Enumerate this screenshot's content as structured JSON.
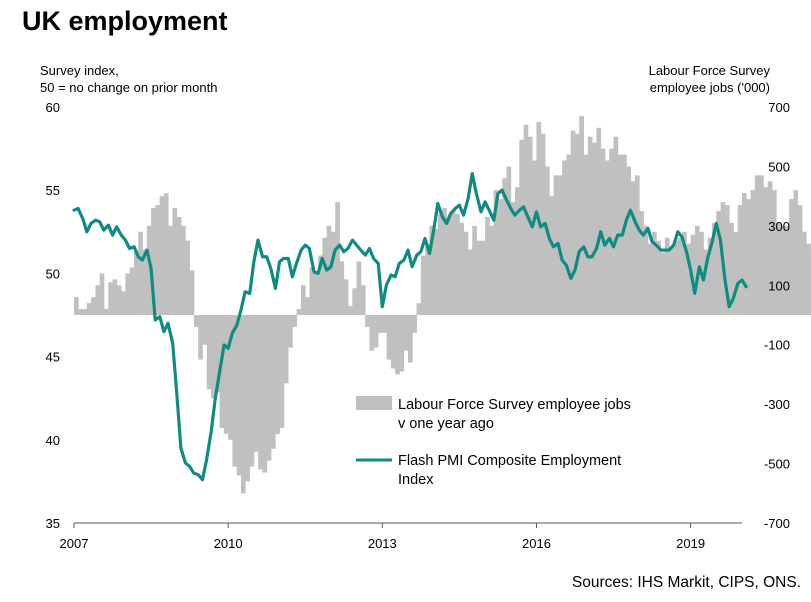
{
  "title": "UK employment",
  "source": "Sources: IHS Markit, CIPS, ONS.",
  "chart_data": {
    "type": "bar+line",
    "title": "UK employment",
    "left_axis": {
      "label_line1": "Survey index,",
      "label_line2": "50 = no change on prior month",
      "range": [
        35,
        60
      ],
      "ticks": [
        35,
        40,
        45,
        50,
        55,
        60
      ]
    },
    "right_axis": {
      "label_line1": "Labour Force Survey",
      "label_line2": "employee jobs  ('000)",
      "range": [
        -700,
        700
      ],
      "ticks": [
        -700,
        -500,
        -300,
        -100,
        100,
        300,
        500,
        700
      ]
    },
    "x_axis": {
      "range": [
        2007.0,
        2020.0
      ],
      "ticks": [
        2007,
        2010,
        2013,
        2016,
        2019
      ],
      "tick_labels": [
        "2007",
        "2010",
        "2013",
        "2016",
        "2019"
      ]
    },
    "legend": {
      "placement": "lower-right",
      "bar_label_line1": "Labour Force Survey employee jobs",
      "bar_label_line2": "v one year ago",
      "line_label_line1": "Flash PMI Composite Employment",
      "line_label_line2": "Index"
    },
    "colors": {
      "bars": "#c0c0c0",
      "line": "#0f8c82",
      "axis": "#555555"
    },
    "series": [
      {
        "name": "Labour Force Survey employee jobs v one year ago",
        "axis": "right",
        "kind": "bar",
        "x_start": 2007.0,
        "step_months": 1,
        "values": [
          60,
          20,
          20,
          40,
          60,
          100,
          140,
          20,
          110,
          120,
          100,
          80,
          140,
          160,
          220,
          280,
          220,
          300,
          360,
          370,
          400,
          410,
          300,
          360,
          330,
          300,
          250,
          150,
          -40,
          -150,
          -100,
          -250,
          -280,
          -260,
          -380,
          -400,
          -420,
          -510,
          -540,
          -600,
          -560,
          -510,
          -460,
          -520,
          -530,
          -490,
          -450,
          -400,
          -380,
          -230,
          -110,
          -40,
          20,
          100,
          60,
          160,
          140,
          200,
          260,
          300,
          280,
          380,
          180,
          120,
          30,
          90,
          180,
          100,
          -40,
          -120,
          -110,
          -60,
          -60,
          -150,
          -180,
          -200,
          -190,
          -120,
          -160,
          -60,
          40,
          200,
          240,
          300,
          290,
          340,
          360,
          330,
          350,
          340,
          310,
          280,
          220,
          300,
          250,
          250,
          330,
          300,
          420,
          390,
          460,
          500,
          380,
          430,
          590,
          640,
          600,
          520,
          650,
          610,
          500,
          400,
          470,
          470,
          520,
          540,
          620,
          610,
          670,
          540,
          600,
          580,
          630,
          560,
          520,
          560,
          600,
          540,
          540,
          500,
          450,
          470,
          350,
          300,
          240,
          280,
          250,
          210,
          260,
          230,
          250,
          260,
          280,
          240,
          270,
          300,
          280,
          220,
          260,
          310,
          350,
          380,
          370,
          310,
          280,
          370,
          410,
          390,
          420,
          470,
          470,
          430,
          450,
          420,
          310,
          300,
          300,
          390,
          420,
          370,
          280,
          240,
          200,
          150,
          100,
          100,
          50,
          20
        ]
      },
      {
        "name": "Flash PMI Composite Employment Index",
        "axis": "left",
        "kind": "line",
        "points": [
          [
            2007.0,
            53.8
          ],
          [
            2007.08,
            53.9
          ],
          [
            2007.17,
            53.3
          ],
          [
            2007.25,
            52.5
          ],
          [
            2007.33,
            53.0
          ],
          [
            2007.42,
            53.2
          ],
          [
            2007.5,
            53.1
          ],
          [
            2007.58,
            52.6
          ],
          [
            2007.67,
            52.9
          ],
          [
            2007.75,
            52.3
          ],
          [
            2007.83,
            52.8
          ],
          [
            2007.92,
            52.3
          ],
          [
            2008.0,
            52.0
          ],
          [
            2008.08,
            51.5
          ],
          [
            2008.17,
            51.6
          ],
          [
            2008.25,
            51.0
          ],
          [
            2008.33,
            50.8
          ],
          [
            2008.42,
            51.4
          ],
          [
            2008.5,
            50.3
          ],
          [
            2008.58,
            47.2
          ],
          [
            2008.67,
            47.4
          ],
          [
            2008.75,
            46.5
          ],
          [
            2008.83,
            47.0
          ],
          [
            2008.92,
            45.8
          ],
          [
            2009.0,
            42.8
          ],
          [
            2009.08,
            39.5
          ],
          [
            2009.17,
            38.6
          ],
          [
            2009.25,
            38.4
          ],
          [
            2009.33,
            38.0
          ],
          [
            2009.42,
            37.9
          ],
          [
            2009.5,
            37.6
          ],
          [
            2009.58,
            38.8
          ],
          [
            2009.67,
            40.5
          ],
          [
            2009.75,
            42.5
          ],
          [
            2009.83,
            44.0
          ],
          [
            2009.92,
            45.7
          ],
          [
            2010.0,
            45.5
          ],
          [
            2010.08,
            46.4
          ],
          [
            2010.17,
            46.9
          ],
          [
            2010.25,
            47.8
          ],
          [
            2010.33,
            48.9
          ],
          [
            2010.42,
            48.8
          ],
          [
            2010.5,
            50.7
          ],
          [
            2010.58,
            52.0
          ],
          [
            2010.67,
            51.0
          ],
          [
            2010.75,
            51.0
          ],
          [
            2010.83,
            50.3
          ],
          [
            2010.92,
            49.1
          ],
          [
            2011.0,
            50.7
          ],
          [
            2011.08,
            50.9
          ],
          [
            2011.17,
            50.9
          ],
          [
            2011.25,
            49.8
          ],
          [
            2011.33,
            50.6
          ],
          [
            2011.42,
            51.4
          ],
          [
            2011.5,
            51.7
          ],
          [
            2011.58,
            51.5
          ],
          [
            2011.67,
            50.1
          ],
          [
            2011.75,
            50.0
          ],
          [
            2011.83,
            50.9
          ],
          [
            2011.92,
            50.2
          ],
          [
            2012.0,
            50.4
          ],
          [
            2012.08,
            51.4
          ],
          [
            2012.17,
            51.7
          ],
          [
            2012.25,
            51.3
          ],
          [
            2012.33,
            51.5
          ],
          [
            2012.42,
            52.0
          ],
          [
            2012.5,
            51.7
          ],
          [
            2012.58,
            51.4
          ],
          [
            2012.67,
            51.1
          ],
          [
            2012.75,
            51.5
          ],
          [
            2012.83,
            50.9
          ],
          [
            2012.92,
            50.6
          ],
          [
            2013.0,
            48.0
          ],
          [
            2013.08,
            49.3
          ],
          [
            2013.17,
            49.9
          ],
          [
            2013.25,
            49.8
          ],
          [
            2013.33,
            50.6
          ],
          [
            2013.42,
            50.8
          ],
          [
            2013.5,
            51.4
          ],
          [
            2013.58,
            50.4
          ],
          [
            2013.67,
            51.1
          ],
          [
            2013.75,
            51.3
          ],
          [
            2013.83,
            52.1
          ],
          [
            2013.92,
            51.2
          ],
          [
            2014.0,
            52.6
          ],
          [
            2014.08,
            54.2
          ],
          [
            2014.17,
            53.4
          ],
          [
            2014.25,
            53.0
          ],
          [
            2014.33,
            53.6
          ],
          [
            2014.42,
            53.9
          ],
          [
            2014.5,
            54.1
          ],
          [
            2014.58,
            53.5
          ],
          [
            2014.67,
            54.5
          ],
          [
            2014.75,
            56.0
          ],
          [
            2014.83,
            54.8
          ],
          [
            2014.92,
            53.7
          ],
          [
            2015.0,
            54.3
          ],
          [
            2015.08,
            53.8
          ],
          [
            2015.17,
            53.2
          ],
          [
            2015.25,
            54.8
          ],
          [
            2015.33,
            55.0
          ],
          [
            2015.42,
            54.4
          ],
          [
            2015.5,
            53.9
          ],
          [
            2015.58,
            53.5
          ],
          [
            2015.67,
            53.8
          ],
          [
            2015.75,
            54.0
          ],
          [
            2015.83,
            53.4
          ],
          [
            2015.92,
            52.8
          ],
          [
            2016.0,
            53.7
          ],
          [
            2016.08,
            52.8
          ],
          [
            2016.17,
            53.0
          ],
          [
            2016.25,
            52.1
          ],
          [
            2016.33,
            51.6
          ],
          [
            2016.42,
            51.8
          ],
          [
            2016.5,
            50.8
          ],
          [
            2016.58,
            50.5
          ],
          [
            2016.67,
            49.7
          ],
          [
            2016.75,
            50.2
          ],
          [
            2016.83,
            51.3
          ],
          [
            2016.92,
            51.6
          ],
          [
            2017.0,
            51.0
          ],
          [
            2017.08,
            51.0
          ],
          [
            2017.17,
            51.5
          ],
          [
            2017.25,
            52.5
          ],
          [
            2017.33,
            51.7
          ],
          [
            2017.42,
            52.1
          ],
          [
            2017.5,
            51.6
          ],
          [
            2017.58,
            52.3
          ],
          [
            2017.67,
            52.3
          ],
          [
            2017.75,
            53.2
          ],
          [
            2017.83,
            53.8
          ],
          [
            2017.92,
            53.1
          ],
          [
            2018.0,
            52.6
          ],
          [
            2018.08,
            52.3
          ],
          [
            2018.17,
            52.7
          ],
          [
            2018.25,
            51.9
          ],
          [
            2018.33,
            51.7
          ],
          [
            2018.42,
            51.4
          ],
          [
            2018.5,
            51.4
          ],
          [
            2018.58,
            51.4
          ],
          [
            2018.67,
            51.7
          ],
          [
            2018.75,
            52.5
          ],
          [
            2018.83,
            52.2
          ],
          [
            2018.92,
            51.3
          ],
          [
            2019.0,
            50.2
          ],
          [
            2019.08,
            48.8
          ],
          [
            2019.17,
            50.4
          ],
          [
            2019.25,
            49.6
          ],
          [
            2019.33,
            50.9
          ],
          [
            2019.42,
            51.9
          ],
          [
            2019.5,
            53.0
          ],
          [
            2019.58,
            52.0
          ],
          [
            2019.67,
            49.6
          ],
          [
            2019.75,
            48.0
          ],
          [
            2019.83,
            48.5
          ],
          [
            2019.92,
            49.4
          ],
          [
            2020.0,
            49.6
          ],
          [
            2020.08,
            49.2
          ]
        ]
      }
    ]
  }
}
